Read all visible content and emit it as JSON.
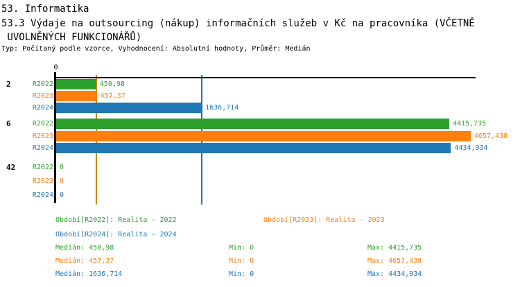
{
  "header": {
    "title": "53. Informatika",
    "subtitle_line1": "53.3 Výdaje na outsourcing (nákup) informačních služeb v Kč na pracovníka (VČETNĚ",
    "subtitle_line2": " UVOLNĚNÝCH FUNKCIONÁŘŮ)",
    "meta": "Typ: Počítaný podle vzorce, Vyhodnocení: Absolutní hodnoty, Průměr: Medián"
  },
  "colors": {
    "r2022": "#2ca02c",
    "r2023": "#ff7f0e",
    "r2024": "#1f77b4",
    "axis": "#000000",
    "background": "#ffffff"
  },
  "chart_data": {
    "type": "bar",
    "orientation": "horizontal",
    "categories": [
      "2",
      "6",
      "42"
    ],
    "series": [
      {
        "name": "R2022",
        "color_key": "r2022",
        "values": [
          450.98,
          4415.735,
          0
        ],
        "value_labels": [
          "450,98",
          "4415,735",
          "0"
        ],
        "median": 450.98
      },
      {
        "name": "R2023",
        "color_key": "r2023",
        "values": [
          457.37,
          4657.438,
          0
        ],
        "value_labels": [
          "457,37",
          "4657,438",
          "0"
        ],
        "median": 457.37
      },
      {
        "name": "R2024",
        "color_key": "r2024",
        "values": [
          1636.714,
          4434.934,
          0
        ],
        "value_labels": [
          "1636,714",
          "4434,934",
          "0"
        ],
        "median": 1636.714
      }
    ],
    "xlim": [
      0,
      4720
    ],
    "x_tick_labels": [
      "0"
    ],
    "median_lines": [
      450.98,
      457.37,
      1636.714
    ],
    "grid": false,
    "legend_position": "bottom"
  },
  "legend": {
    "r2022": "Období[R2022]: Realita - 2022",
    "r2023": "Období[R2023]: Realita - 2023",
    "r2024": "Období[R2024]: Realita - 2024"
  },
  "stats": [
    {
      "color_key": "r2022",
      "median": "Medián: 450,98",
      "min": "Min: 0",
      "max": "Max: 4415,735"
    },
    {
      "color_key": "r2023",
      "median": "Medián: 457,37",
      "min": "Min: 0",
      "max": "Max: 4657,438"
    },
    {
      "color_key": "r2024",
      "median": "Medián: 1636,714",
      "min": "Min: 0",
      "max": "Max: 4434,934"
    }
  ]
}
